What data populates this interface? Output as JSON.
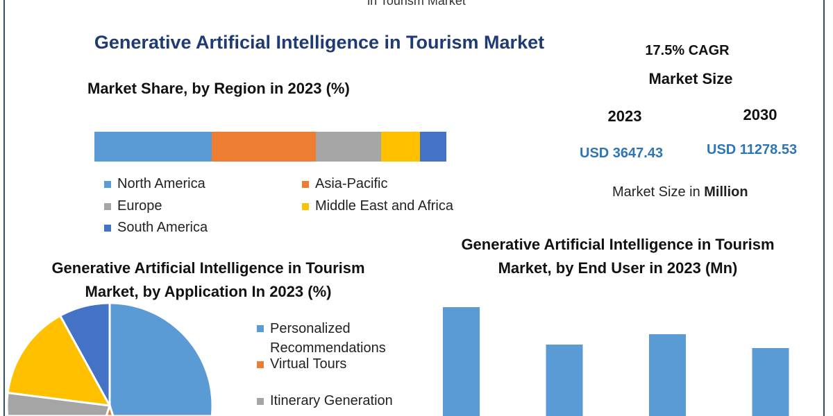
{
  "header": {
    "cut_title": "in Tourism Market",
    "title": "Generative Artificial Intelligence in Tourism Market"
  },
  "market": {
    "cagr": "17.5% CAGR",
    "label": "Market Size",
    "year1": "2023",
    "year2": "2030",
    "value1": "USD 3647.43",
    "value2": "USD 11278.53",
    "unit_prefix": "Market Size in ",
    "unit_bold": "Million"
  },
  "colors": {
    "blue": "#5b9bd5",
    "orange": "#ed7d31",
    "gray": "#a5a5a5",
    "yellow": "#ffc000",
    "darkblue": "#4472c4",
    "title": "#1f3b73",
    "usd": "#2e75b6"
  },
  "chart_data": [
    {
      "type": "bar",
      "orientation": "horizontal-stacked",
      "title": "Market Share, by Region in 2023 (%)",
      "series": [
        {
          "name": "North America",
          "values": [
            33.3
          ],
          "color": "#5b9bd5"
        },
        {
          "name": "Asia-Pacific",
          "values": [
            29.6
          ],
          "color": "#ed7d31"
        },
        {
          "name": "Europe",
          "values": [
            18.5
          ],
          "color": "#a5a5a5"
        },
        {
          "name": "Middle East and Africa",
          "values": [
            11.2
          ],
          "color": "#ffc000"
        },
        {
          "name": "South America",
          "values": [
            7.4
          ],
          "color": "#4472c4"
        }
      ],
      "legend": "bottom"
    },
    {
      "type": "pie",
      "title": "Generative Artificial Intelligence in Tourism Market, by Application In 2023 (%)",
      "slices": [
        {
          "name": "Personalized Recommendations",
          "value": 45,
          "color": "#5b9bd5"
        },
        {
          "name": "Virtual Tours",
          "value": 10,
          "color": "#ed7d31"
        },
        {
          "name": "Itinerary Generation",
          "value": 22,
          "color": "#a5a5a5"
        },
        {
          "name": "",
          "value": 15,
          "color": "#ffc000"
        },
        {
          "name": "",
          "value": 8,
          "color": "#4472c4"
        }
      ],
      "legend": "right"
    },
    {
      "type": "bar",
      "title": "Generative Artificial Intelligence in Tourism Market, by End User in 2023 (Mn)",
      "values": [
        197,
        143,
        158,
        138
      ],
      "color": "#5b9bd5"
    }
  ]
}
